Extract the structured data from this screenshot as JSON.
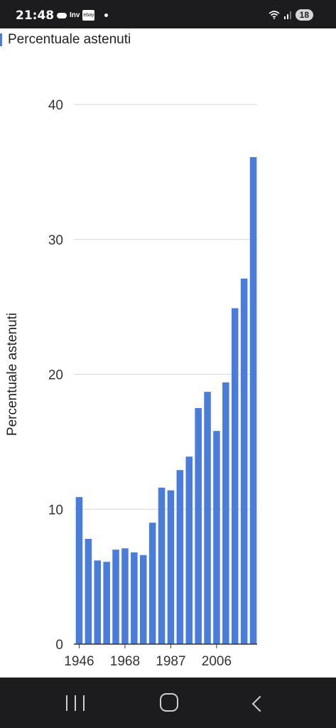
{
  "status_bar": {
    "time": "21:48",
    "inv": "Inv",
    "ebay": "ebay",
    "battery": "18"
  },
  "chart_data": {
    "type": "bar",
    "title": "",
    "legend": "Percentuale astenuti",
    "legend_position": "top-left",
    "ylabel": "Percentuale astenuti",
    "xlabel": "",
    "ylim": [
      0,
      40
    ],
    "yticks": [
      0,
      10,
      20,
      30,
      40
    ],
    "xtick_labels": [
      "1946",
      "1968",
      "1987",
      "2006"
    ],
    "grid": true,
    "color": "#4a7ddb",
    "series": [
      {
        "name": "Percentuale astenuti",
        "values": [
          10.9,
          7.8,
          6.2,
          6.1,
          7.0,
          7.1,
          6.8,
          6.6,
          9.0,
          11.6,
          11.4,
          12.9,
          13.9,
          17.5,
          18.7,
          15.8,
          19.4,
          24.9,
          27.1,
          36.1
        ]
      }
    ]
  }
}
